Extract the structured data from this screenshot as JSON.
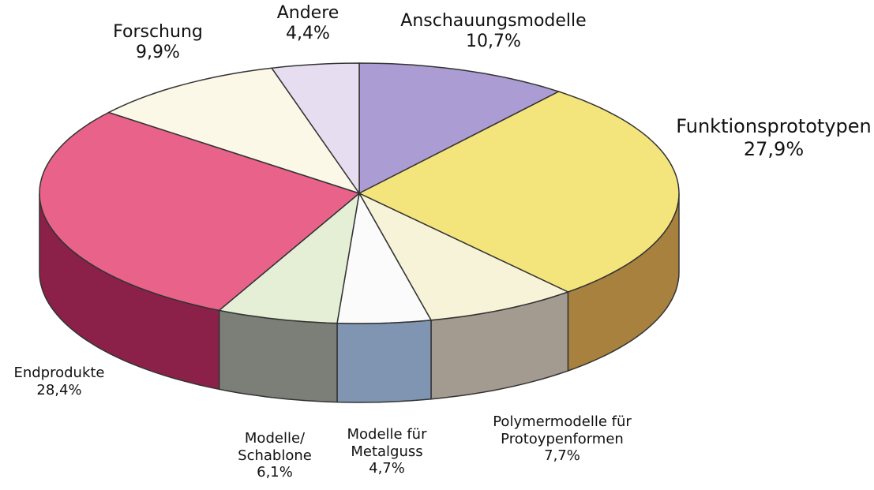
{
  "chart_data": {
    "type": "pie3d",
    "categories": [
      "Anschauungsmodelle",
      "Funktionsprototypen",
      "Polymermodelle für Protoypenformen",
      "Modelle für Metalguss",
      "Modelle/ Schablone",
      "Endprodukte",
      "Forschung",
      "Andere"
    ],
    "values": [
      10.7,
      27.9,
      7.7,
      4.7,
      6.1,
      28.4,
      9.9,
      4.4
    ],
    "value_labels": [
      "10,7%",
      "27,9%",
      "7,7%",
      "4,7%",
      "6,1%",
      "28,4%",
      "9,9%",
      "4,4%"
    ],
    "colors": [
      "#ab9dd3",
      "#f4e47c",
      "#f6f3d8",
      "#fbfbfb",
      "#e4efd6",
      "#e8628a",
      "#fbf8e8",
      "#e7ddf0"
    ],
    "side_colors": [
      "#7d6fa6",
      "#a8813f",
      "#a39b8f",
      "#7f95b1",
      "#7c7f77",
      "#8b2148",
      "#b0ac9a",
      "#9f96aa"
    ]
  }
}
